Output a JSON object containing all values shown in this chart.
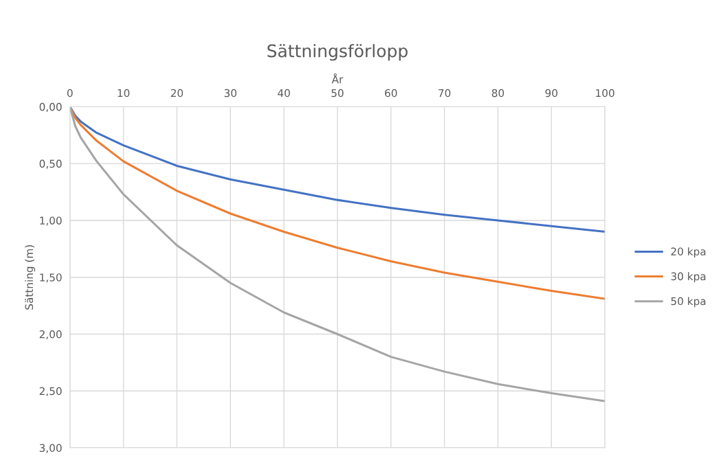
{
  "chart_data": {
    "type": "line",
    "title": "Sättningsförlopp",
    "xlabel": "År",
    "ylabel": "Sättning (m)",
    "x": [
      0,
      1,
      2,
      5,
      10,
      20,
      30,
      40,
      50,
      60,
      70,
      80,
      90,
      100
    ],
    "series": [
      {
        "name": "20 kpa",
        "color": "#4472c4",
        "values": [
          0,
          0.08,
          0.13,
          0.23,
          0.34,
          0.52,
          0.64,
          0.73,
          0.82,
          0.89,
          0.95,
          1.0,
          1.05,
          1.1
        ]
      },
      {
        "name": "30 kpa",
        "color": "#ed7d31",
        "values": [
          0,
          0.1,
          0.16,
          0.3,
          0.48,
          0.74,
          0.94,
          1.1,
          1.24,
          1.36,
          1.46,
          1.54,
          1.62,
          1.69
        ]
      },
      {
        "name": "50 kpa",
        "color": "#a5a5a5",
        "values": [
          0,
          0.17,
          0.27,
          0.48,
          0.77,
          1.22,
          1.55,
          1.81,
          2.0,
          2.2,
          2.33,
          2.44,
          2.52,
          2.59
        ]
      }
    ],
    "xlim": [
      0,
      100
    ],
    "xticks": [
      0,
      10,
      20,
      30,
      40,
      50,
      60,
      70,
      80,
      90,
      100
    ],
    "ylim": [
      3,
      0
    ],
    "yticks": [
      {
        "value": 0,
        "label": "0,00"
      },
      {
        "value": 0.5,
        "label": "0,50"
      },
      {
        "value": 1,
        "label": "1,00"
      },
      {
        "value": 1.5,
        "label": "1,50"
      },
      {
        "value": 2,
        "label": "2,00"
      },
      {
        "value": 2.5,
        "label": "2,50"
      },
      {
        "value": 3,
        "label": "3,00"
      }
    ],
    "grid": true,
    "legend": "right",
    "marker": "none",
    "line_style": "solid"
  }
}
